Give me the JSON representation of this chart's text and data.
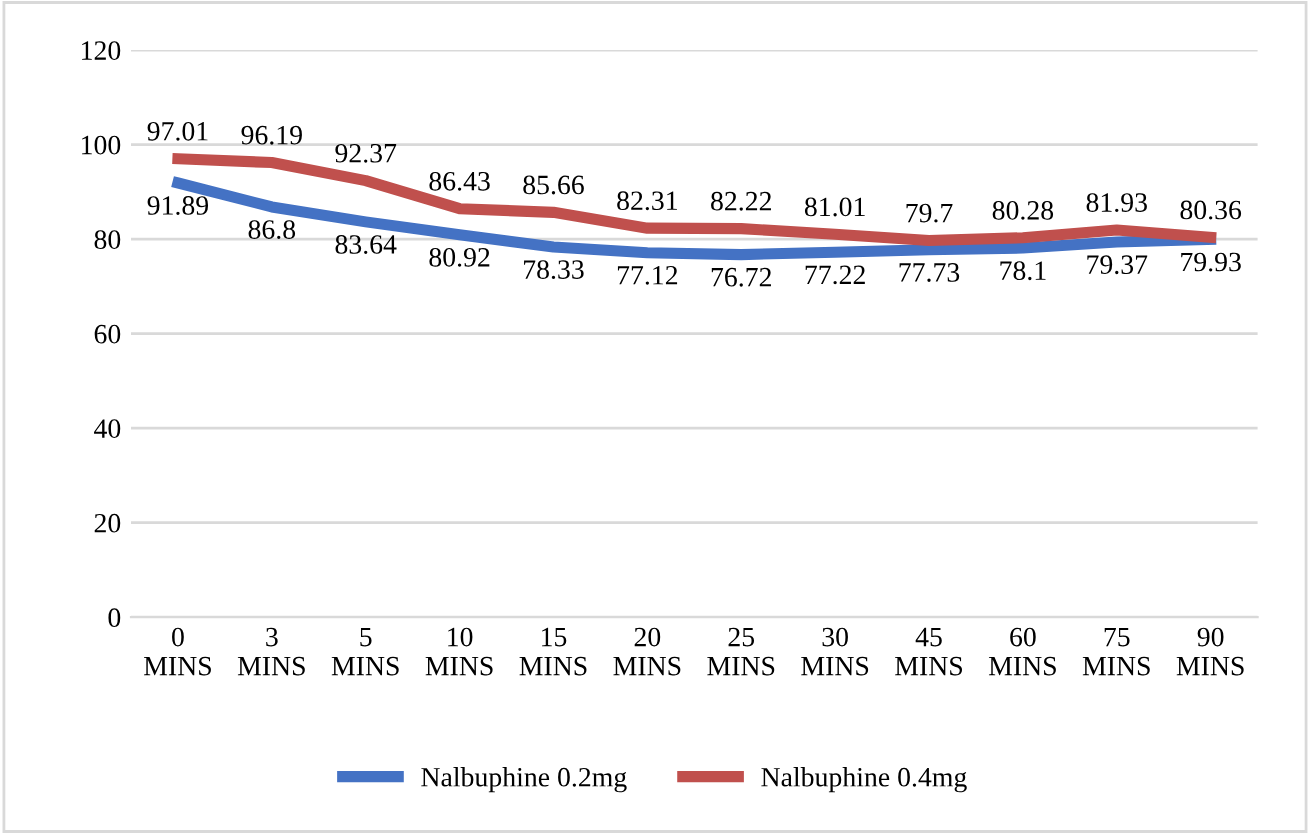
{
  "chart_data": {
    "type": "line",
    "categories": [
      "0\nMINS",
      "3\nMINS",
      "5\nMINS",
      "10\nMINS",
      "15\nMINS",
      "20\nMINS",
      "25\nMINS",
      "30\nMINS",
      "45\nMINS",
      "60\nMINS",
      "75\nMINS",
      "90\nMINS"
    ],
    "series": [
      {
        "name": "Nalbuphine 0.2mg",
        "color": "#4472c4",
        "values": [
          91.89,
          86.8,
          83.64,
          80.92,
          78.33,
          77.12,
          76.72,
          77.22,
          77.73,
          78.1,
          79.37,
          79.93
        ]
      },
      {
        "name": "Nalbuphine 0.4mg",
        "color": "#c0504d",
        "values": [
          97.01,
          96.19,
          92.37,
          86.43,
          85.66,
          82.31,
          82.22,
          81.01,
          79.7,
          80.28,
          81.93,
          80.36
        ]
      }
    ],
    "ylim": [
      0,
      120
    ],
    "yticks": [
      0,
      20,
      40,
      60,
      80,
      100,
      120
    ],
    "grid": "y",
    "legend": "bottom",
    "data_labels": true,
    "marker": "none",
    "line_style": "solid"
  }
}
